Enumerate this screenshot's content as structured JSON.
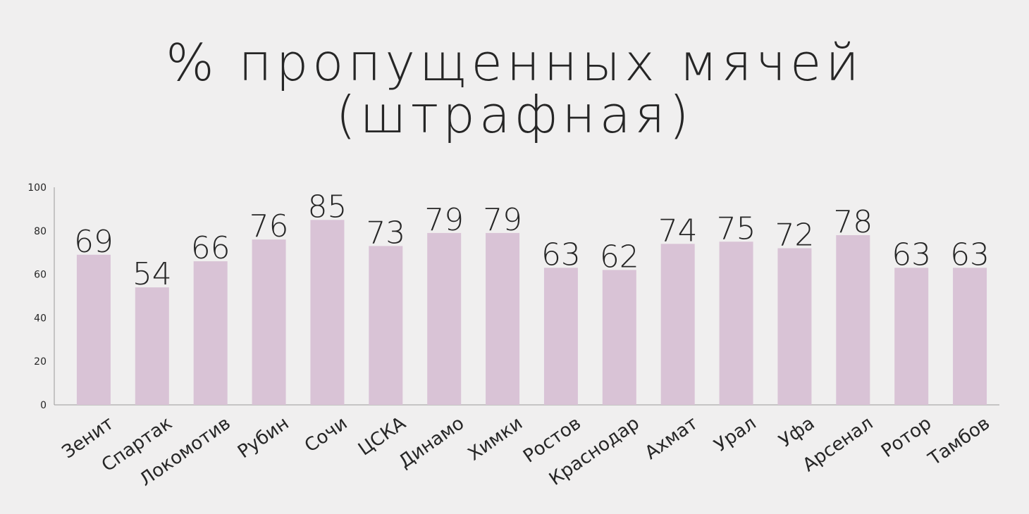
{
  "chart_data": {
    "type": "bar",
    "title": [
      "% пропущенных мячей",
      "(штрафная)"
    ],
    "categories": [
      "Зенит",
      "Спартак",
      "Локомотив",
      "Рубин",
      "Сочи",
      "ЦСКА",
      "Динамо",
      "Химки",
      "Ростов",
      "Краснодар",
      "Ахмат",
      "Урал",
      "Уфа",
      "Арсенал",
      "Ротор",
      "Тамбов"
    ],
    "values": [
      69,
      54,
      66,
      76,
      85,
      73,
      79,
      79,
      63,
      62,
      74,
      75,
      72,
      78,
      63,
      63
    ],
    "ylim": [
      0,
      100
    ],
    "yticks": [
      0,
      20,
      40,
      60,
      80,
      100
    ],
    "xlabel": "",
    "ylabel": "",
    "grid": false,
    "data_labels": true,
    "colors": {
      "bar": "#d9c3d6",
      "text": "#262626",
      "axis": "#9a9a9a",
      "background": "#f0efef"
    }
  }
}
